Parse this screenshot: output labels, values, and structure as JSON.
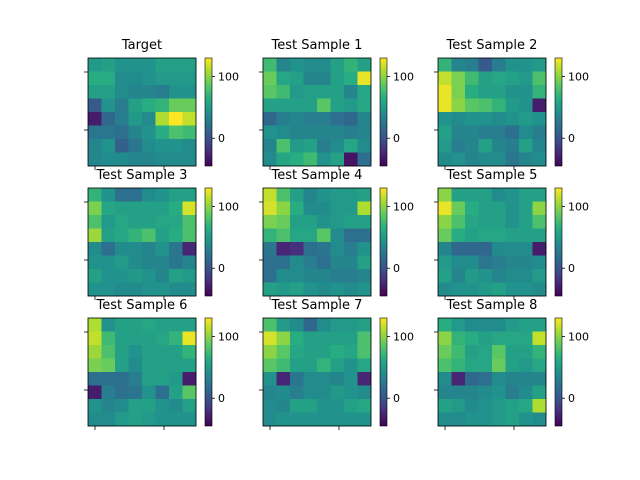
{
  "chart_data": {
    "type": "heatmap",
    "colormap": "viridis",
    "color_range": [
      -45,
      130
    ],
    "colorbar_ticks": [
      {
        "value": 100,
        "label": "100"
      },
      {
        "value": 0,
        "label": "0"
      }
    ],
    "panels": [
      {
        "title": "Target",
        "grid": [
          [
            50,
            55,
            45,
            45,
            45,
            55,
            55,
            55
          ],
          [
            65,
            65,
            40,
            40,
            45,
            50,
            50,
            50
          ],
          [
            55,
            55,
            40,
            35,
            35,
            30,
            45,
            45
          ],
          [
            5,
            45,
            30,
            55,
            65,
            70,
            90,
            90
          ],
          [
            -30,
            15,
            30,
            50,
            40,
            110,
            130,
            115
          ],
          [
            25,
            25,
            20,
            35,
            45,
            65,
            80,
            75
          ],
          [
            35,
            45,
            10,
            25,
            40,
            45,
            45,
            40
          ],
          [
            35,
            40,
            40,
            35,
            35,
            40,
            40,
            40
          ]
        ]
      },
      {
        "title": "Test Sample 1",
        "grid": [
          [
            75,
            35,
            45,
            40,
            40,
            55,
            70,
            55
          ],
          [
            90,
            60,
            55,
            35,
            35,
            55,
            65,
            125
          ],
          [
            85,
            75,
            50,
            55,
            55,
            55,
            35,
            60
          ],
          [
            55,
            55,
            55,
            55,
            85,
            55,
            50,
            60
          ],
          [
            15,
            30,
            35,
            30,
            30,
            20,
            15,
            35
          ],
          [
            45,
            40,
            35,
            35,
            35,
            35,
            30,
            35
          ],
          [
            35,
            80,
            50,
            55,
            30,
            40,
            60,
            40
          ],
          [
            40,
            60,
            65,
            75,
            45,
            55,
            -35,
            20
          ]
        ]
      },
      {
        "title": "Test Sample 2",
        "grid": [
          [
            70,
            35,
            30,
            5,
            30,
            45,
            45,
            50
          ],
          [
            115,
            95,
            75,
            55,
            60,
            55,
            50,
            80
          ],
          [
            125,
            95,
            65,
            55,
            55,
            45,
            45,
            70
          ],
          [
            125,
            100,
            85,
            80,
            70,
            50,
            45,
            -30
          ],
          [
            45,
            40,
            45,
            45,
            40,
            45,
            50,
            45
          ],
          [
            55,
            35,
            35,
            30,
            30,
            20,
            40,
            30
          ],
          [
            50,
            30,
            35,
            55,
            35,
            30,
            55,
            35
          ],
          [
            40,
            45,
            35,
            40,
            40,
            25,
            35,
            40
          ]
        ]
      },
      {
        "title": "Test Sample 3",
        "grid": [
          [
            70,
            45,
            20,
            20,
            40,
            45,
            55,
            55
          ],
          [
            95,
            60,
            55,
            55,
            55,
            55,
            65,
            120
          ],
          [
            80,
            50,
            60,
            55,
            55,
            60,
            60,
            80
          ],
          [
            105,
            55,
            60,
            70,
            80,
            55,
            65,
            80
          ],
          [
            40,
            20,
            40,
            40,
            35,
            45,
            25,
            -25
          ],
          [
            45,
            45,
            50,
            40,
            35,
            35,
            25,
            35
          ],
          [
            55,
            45,
            45,
            50,
            45,
            35,
            55,
            50
          ],
          [
            45,
            45,
            40,
            40,
            45,
            45,
            40,
            40
          ]
        ]
      },
      {
        "title": "Test Sample 4",
        "grid": [
          [
            115,
            80,
            55,
            35,
            45,
            50,
            50,
            55
          ],
          [
            120,
            100,
            65,
            40,
            40,
            50,
            50,
            110
          ],
          [
            95,
            90,
            55,
            55,
            45,
            50,
            55,
            55
          ],
          [
            70,
            80,
            60,
            60,
            85,
            40,
            20,
            20
          ],
          [
            25,
            -25,
            -20,
            20,
            25,
            40,
            30,
            45
          ],
          [
            20,
            20,
            40,
            30,
            20,
            35,
            35,
            55
          ],
          [
            20,
            40,
            40,
            35,
            35,
            30,
            30,
            35
          ],
          [
            55,
            50,
            55,
            45,
            40,
            45,
            40,
            45
          ]
        ]
      },
      {
        "title": "Test Sample 5",
        "grid": [
          [
            100,
            55,
            55,
            55,
            40,
            45,
            55,
            55
          ],
          [
            125,
            90,
            65,
            55,
            55,
            45,
            55,
            100
          ],
          [
            100,
            80,
            60,
            55,
            55,
            45,
            55,
            80
          ],
          [
            90,
            65,
            55,
            60,
            60,
            55,
            55,
            55
          ],
          [
            35,
            15,
            15,
            15,
            40,
            40,
            40,
            -30
          ],
          [
            50,
            40,
            40,
            25,
            30,
            35,
            35,
            40
          ],
          [
            55,
            35,
            50,
            45,
            35,
            40,
            40,
            50
          ],
          [
            40,
            45,
            45,
            50,
            55,
            45,
            45,
            40
          ]
        ]
      },
      {
        "title": "Test Sample 6",
        "grid": [
          [
            110,
            45,
            55,
            55,
            60,
            55,
            55,
            55
          ],
          [
            115,
            75,
            55,
            55,
            55,
            60,
            70,
            125
          ],
          [
            105,
            80,
            55,
            45,
            55,
            55,
            55,
            70
          ],
          [
            95,
            90,
            55,
            40,
            55,
            55,
            55,
            55
          ],
          [
            20,
            20,
            20,
            30,
            55,
            55,
            50,
            -30
          ],
          [
            -30,
            30,
            20,
            25,
            45,
            20,
            55,
            85
          ],
          [
            45,
            35,
            40,
            55,
            55,
            45,
            40,
            55
          ],
          [
            40,
            40,
            50,
            55,
            50,
            45,
            45,
            45
          ]
        ]
      },
      {
        "title": "Test Sample 7",
        "grid": [
          [
            80,
            50,
            40,
            15,
            40,
            50,
            50,
            55
          ],
          [
            120,
            100,
            65,
            55,
            55,
            55,
            55,
            80
          ],
          [
            100,
            85,
            60,
            55,
            55,
            65,
            60,
            80
          ],
          [
            85,
            75,
            55,
            55,
            70,
            55,
            45,
            60
          ],
          [
            45,
            -25,
            25,
            40,
            40,
            35,
            45,
            -25
          ],
          [
            35,
            40,
            30,
            40,
            40,
            50,
            45,
            40
          ],
          [
            40,
            35,
            55,
            55,
            45,
            45,
            55,
            60
          ],
          [
            40,
            45,
            45,
            45,
            45,
            45,
            45,
            45
          ]
        ]
      },
      {
        "title": "Test Sample 8",
        "grid": [
          [
            65,
            50,
            40,
            40,
            40,
            50,
            55,
            55
          ],
          [
            100,
            70,
            65,
            55,
            60,
            60,
            60,
            115
          ],
          [
            90,
            75,
            55,
            60,
            85,
            55,
            55,
            70
          ],
          [
            80,
            70,
            60,
            60,
            90,
            55,
            50,
            60
          ],
          [
            40,
            -25,
            15,
            20,
            40,
            35,
            35,
            35
          ],
          [
            35,
            35,
            35,
            40,
            45,
            30,
            40,
            55
          ],
          [
            55,
            50,
            40,
            45,
            50,
            55,
            60,
            110
          ],
          [
            40,
            40,
            45,
            45,
            50,
            55,
            45,
            40
          ]
        ]
      }
    ]
  }
}
